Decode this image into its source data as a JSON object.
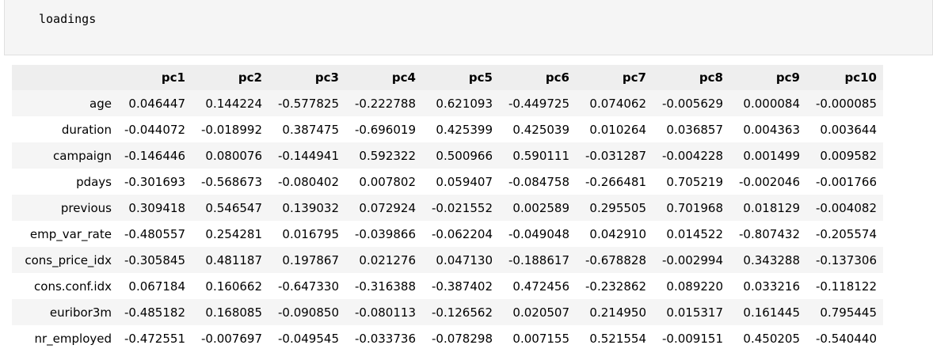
{
  "input_cell": {
    "code": "loadings"
  },
  "table": {
    "columns": [
      "pc1",
      "pc2",
      "pc3",
      "pc4",
      "pc5",
      "pc6",
      "pc7",
      "pc8",
      "pc9",
      "pc10"
    ],
    "rows": [
      {
        "index": "age",
        "values": [
          "0.046447",
          "0.144224",
          "-0.577825",
          "-0.222788",
          "0.621093",
          "-0.449725",
          "0.074062",
          "-0.005629",
          "0.000084",
          "-0.000085"
        ]
      },
      {
        "index": "duration",
        "values": [
          "-0.044072",
          "-0.018992",
          "0.387475",
          "-0.696019",
          "0.425399",
          "0.425039",
          "0.010264",
          "0.036857",
          "0.004363",
          "0.003644"
        ]
      },
      {
        "index": "campaign",
        "values": [
          "-0.146446",
          "0.080076",
          "-0.144941",
          "0.592322",
          "0.500966",
          "0.590111",
          "-0.031287",
          "-0.004228",
          "0.001499",
          "0.009582"
        ]
      },
      {
        "index": "pdays",
        "values": [
          "-0.301693",
          "-0.568673",
          "-0.080402",
          "0.007802",
          "0.059407",
          "-0.084758",
          "-0.266481",
          "0.705219",
          "-0.002046",
          "-0.001766"
        ]
      },
      {
        "index": "previous",
        "values": [
          "0.309418",
          "0.546547",
          "0.139032",
          "0.072924",
          "-0.021552",
          "0.002589",
          "0.295505",
          "0.701968",
          "0.018129",
          "-0.004082"
        ]
      },
      {
        "index": "emp_var_rate",
        "values": [
          "-0.480557",
          "0.254281",
          "0.016795",
          "-0.039866",
          "-0.062204",
          "-0.049048",
          "0.042910",
          "0.014522",
          "-0.807432",
          "-0.205574"
        ]
      },
      {
        "index": "cons_price_idx",
        "values": [
          "-0.305845",
          "0.481187",
          "0.197867",
          "0.021276",
          "0.047130",
          "-0.188617",
          "-0.678828",
          "-0.002994",
          "0.343288",
          "-0.137306"
        ]
      },
      {
        "index": "cons.conf.idx",
        "values": [
          "0.067184",
          "0.160662",
          "-0.647330",
          "-0.316388",
          "-0.387402",
          "0.472456",
          "-0.232862",
          "0.089220",
          "0.033216",
          "-0.118122"
        ]
      },
      {
        "index": "euribor3m",
        "values": [
          "-0.485182",
          "0.168085",
          "-0.090850",
          "-0.080113",
          "-0.126562",
          "0.020507",
          "0.214950",
          "0.015317",
          "0.161445",
          "0.795445"
        ]
      },
      {
        "index": "nr_employed",
        "values": [
          "-0.472551",
          "-0.007697",
          "-0.049545",
          "-0.033736",
          "-0.078298",
          "0.007155",
          "0.521554",
          "-0.009151",
          "0.450205",
          "-0.540440"
        ]
      }
    ]
  }
}
